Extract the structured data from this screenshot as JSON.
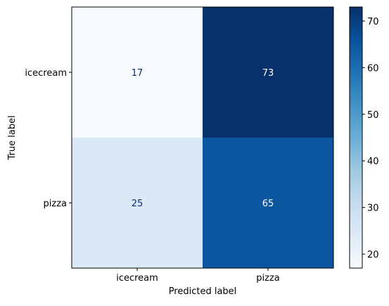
{
  "chart_data": {
    "type": "heatmap",
    "xlabel": "Predicted label",
    "ylabel": "True label",
    "x_categories": [
      "icecream",
      "pizza"
    ],
    "y_categories": [
      "icecream",
      "pizza"
    ],
    "matrix": [
      [
        17,
        73
      ],
      [
        25,
        65
      ]
    ],
    "colormap": "Blues",
    "vmin": 17,
    "vmax": 73,
    "colorbar": {
      "ticks": [
        20,
        30,
        40,
        50,
        60,
        70
      ]
    },
    "grid": false
  }
}
